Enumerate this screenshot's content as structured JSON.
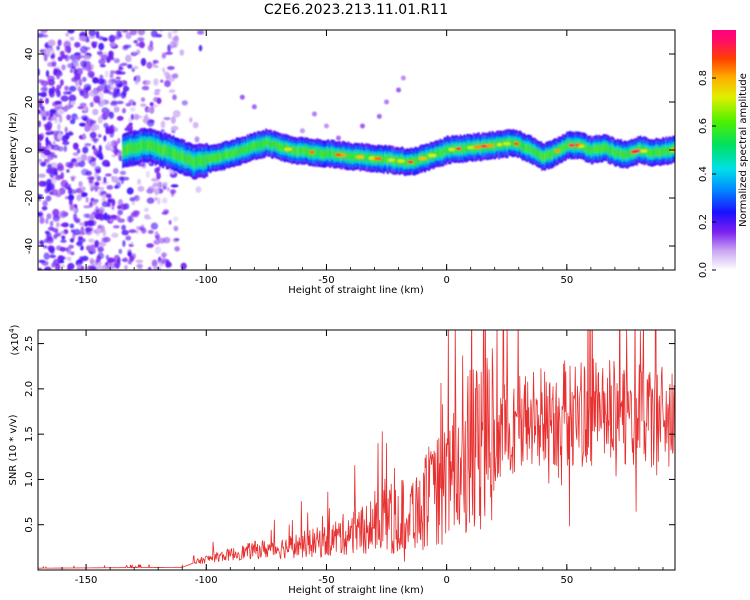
{
  "title": "C2E6.2023.213.11.01.R11",
  "chart_data": [
    {
      "type": "heatmap",
      "xlabel": "Height of straight line (km)",
      "ylabel": "Frequency (Hz)",
      "xlim": [
        -170,
        95
      ],
      "ylim": [
        -50,
        50
      ],
      "xticks": [
        -150,
        -100,
        -50,
        0,
        50
      ],
      "yticks": [
        -40,
        -20,
        0,
        20,
        40
      ],
      "colorbar": {
        "label": "Normalized spectral amplitude",
        "range": [
          0,
          1
        ],
        "ticks": [
          0.0,
          0.2,
          0.4,
          0.6,
          0.8
        ]
      },
      "ridge": {
        "x": [
          -135,
          -125,
          -115,
          -105,
          -95,
          -85,
          -75,
          -65,
          -55,
          -45,
          -35,
          -25,
          -15,
          -5,
          0,
          10,
          20,
          28,
          35,
          40,
          45,
          50,
          55,
          60,
          65,
          70,
          75,
          80,
          85,
          95
        ],
        "y": [
          0,
          2,
          -1,
          -5,
          -3,
          0,
          3,
          0,
          -1,
          -2,
          -3,
          -4,
          -5,
          -2,
          0,
          1,
          2,
          3,
          0,
          -3,
          -1,
          2,
          2,
          0,
          1,
          -1,
          -2,
          0,
          -1,
          0
        ]
      }
    },
    {
      "type": "line",
      "xlabel": "Height of straight line (km)",
      "ylabel": "SNR (10 * v/v)",
      "scale_label": "(x10",
      "scale_exp": "4",
      "scale_suffix": ")",
      "xlim": [
        -170,
        95
      ],
      "ylim": [
        0,
        2.65
      ],
      "xticks": [
        -150,
        -100,
        -50,
        0,
        50
      ],
      "yticks": [
        0.5,
        1.0,
        1.5,
        2.0,
        2.5
      ],
      "series": [
        {
          "color": "#e83030",
          "trend": {
            "x": [
              -170,
              -110,
              -105,
              -100,
              -90,
              -80,
              -70,
              -60,
              -50,
              -40,
              -30,
              -20,
              -10,
              0,
              10,
              20,
              30,
              40,
              50,
              60,
              70,
              80,
              95
            ],
            "y": [
              0.02,
              0.03,
              0.08,
              0.12,
              0.17,
              0.22,
              0.24,
              0.28,
              0.32,
              0.42,
              0.52,
              0.58,
              0.72,
              0.95,
              1.3,
              1.5,
              1.62,
              1.68,
              1.72,
              1.74,
              1.72,
              1.7,
              1.68
            ]
          }
        }
      ]
    }
  ]
}
